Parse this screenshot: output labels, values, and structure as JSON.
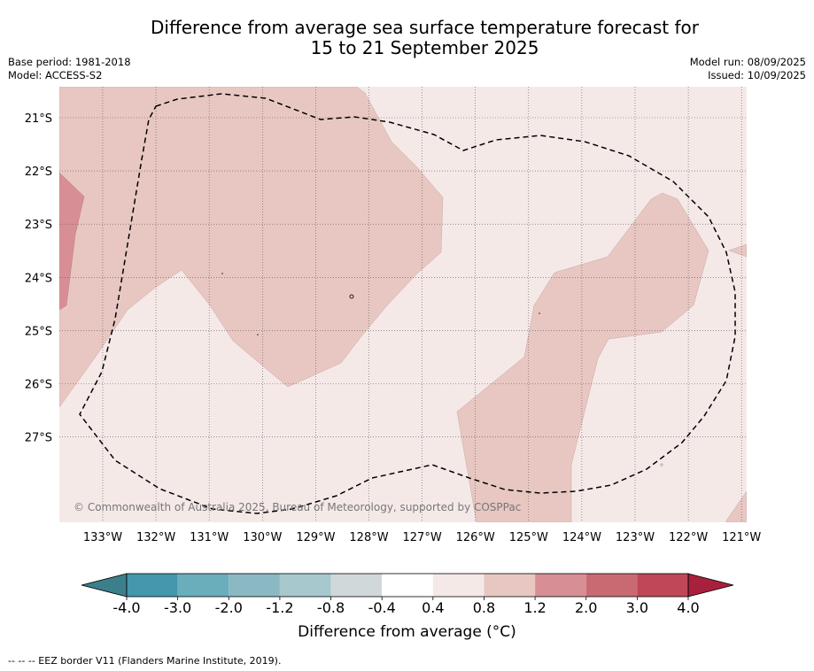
{
  "header": {
    "title_line1": "Difference from average sea surface temperature forecast for",
    "title_line2": "15 to 21 September 2025",
    "base_period": "Base period: 1981-2018",
    "model": "Model: ACCESS-S2",
    "model_run": "Model run: 08/09/2025",
    "issued": "Issued: 10/09/2025"
  },
  "map": {
    "lat_labels": [
      "21°S",
      "22°S",
      "23°S",
      "24°S",
      "25°S",
      "26°S",
      "27°S"
    ],
    "lon_labels": [
      "133°W",
      "132°W",
      "131°W",
      "130°W",
      "129°W",
      "128°W",
      "127°W",
      "126°W",
      "125°W",
      "124°W",
      "123°W",
      "122°W",
      "121°W"
    ],
    "credit": "© Commonwealth of Australia 2025, Bureau of Meteorology, supported by COSPPac",
    "colors": {
      "band_0.4_0.8": "#f5e9e8",
      "band_0.8_1.2": "#e8c7c2",
      "band_1.2_2.0": "#d78f95",
      "grid": "#555555",
      "eez_border": "#000000"
    }
  },
  "colorbar": {
    "ticks": [
      "-4.0",
      "-3.0",
      "-2.0",
      "-1.2",
      "-0.8",
      "-0.4",
      "0.4",
      "0.8",
      "1.2",
      "2.0",
      "3.0",
      "4.0"
    ],
    "colors": [
      "#4497ac",
      "#6aaebc",
      "#8ab8c3",
      "#a7c8cc",
      "#d0d8d9",
      "#ffffff",
      "#f5e9e8",
      "#e8c7c2",
      "#d78f95",
      "#c96a72",
      "#bf4858"
    ],
    "under_color": "#3b7f8b",
    "over_color": "#a8203c",
    "title": "Difference from average (°C)"
  },
  "footer": {
    "legend": "-- -- -- EEZ border V11 (Flanders Marine Institute, 2019)."
  }
}
